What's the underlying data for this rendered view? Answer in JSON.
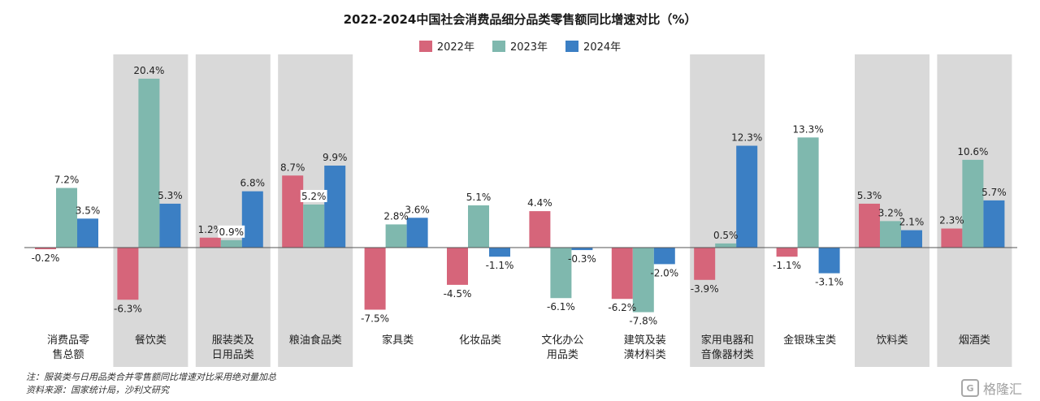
{
  "chart_data": {
    "type": "bar",
    "title": "2022-2024中国社会消费品细分品类零售额同比增速对比（%）",
    "categories": [
      "消费品零\n售总额",
      "餐饮类",
      "服装类及\n日用品类",
      "粮油食品类",
      "家具类",
      "化妆品类",
      "文化办公\n用品类",
      "建筑及装\n潢材料类",
      "家用电器和\n音像器材类",
      "金银珠宝类",
      "饮料类",
      "烟酒类"
    ],
    "highlighted_categories": [
      1,
      2,
      3,
      8,
      10,
      11
    ],
    "series": [
      {
        "name": "2022年",
        "color": "#d6657a",
        "values": [
          -0.2,
          -6.3,
          1.2,
          8.7,
          -7.5,
          -4.5,
          4.4,
          -6.2,
          -3.9,
          -1.1,
          5.3,
          2.3
        ]
      },
      {
        "name": "2023年",
        "color": "#7fb8ae",
        "values": [
          7.2,
          20.4,
          0.9,
          5.2,
          2.8,
          5.1,
          -6.1,
          -7.8,
          0.5,
          13.3,
          3.2,
          10.6
        ]
      },
      {
        "name": "2024年",
        "color": "#3b7fc4",
        "values": [
          3.5,
          5.3,
          6.8,
          9.9,
          3.6,
          -1.1,
          -0.3,
          -2.0,
          12.3,
          -3.1,
          2.1,
          5.7
        ]
      }
    ],
    "labels": [
      [
        "-0.2%",
        "-6.3%",
        "1.2%",
        "8.7%",
        "-7.5%",
        "-4.5%",
        "4.4%",
        "-6.2%",
        "-3.9%",
        "-1.1%",
        "5.3%",
        "2.3%"
      ],
      [
        "7.2%",
        "20.4%",
        "0.9%",
        "5.2%",
        "2.8%",
        "5.1%",
        "-6.1%",
        "-7.8%",
        "0.5%",
        "13.3%",
        "3.2%",
        "10.6%"
      ],
      [
        "3.5%",
        "5.3%",
        "6.8%",
        "9.9%",
        "3.6%",
        "-1.1%",
        "-0.3%",
        "-2.0%",
        "12.3%",
        "-3.1%",
        "2.1%",
        "5.7%"
      ]
    ],
    "ylim": [
      -10,
      24
    ],
    "xlabel": "",
    "ylabel": "",
    "grid": false,
    "legend_position": "top-center"
  },
  "notes": {
    "line1": "注：服装类与日用品类合并零售额同比增速对比采用绝对量加总",
    "line2": "资料来源：国家统计局，沙利文研究"
  },
  "watermark": {
    "logo": "G",
    "text": "格隆汇"
  }
}
